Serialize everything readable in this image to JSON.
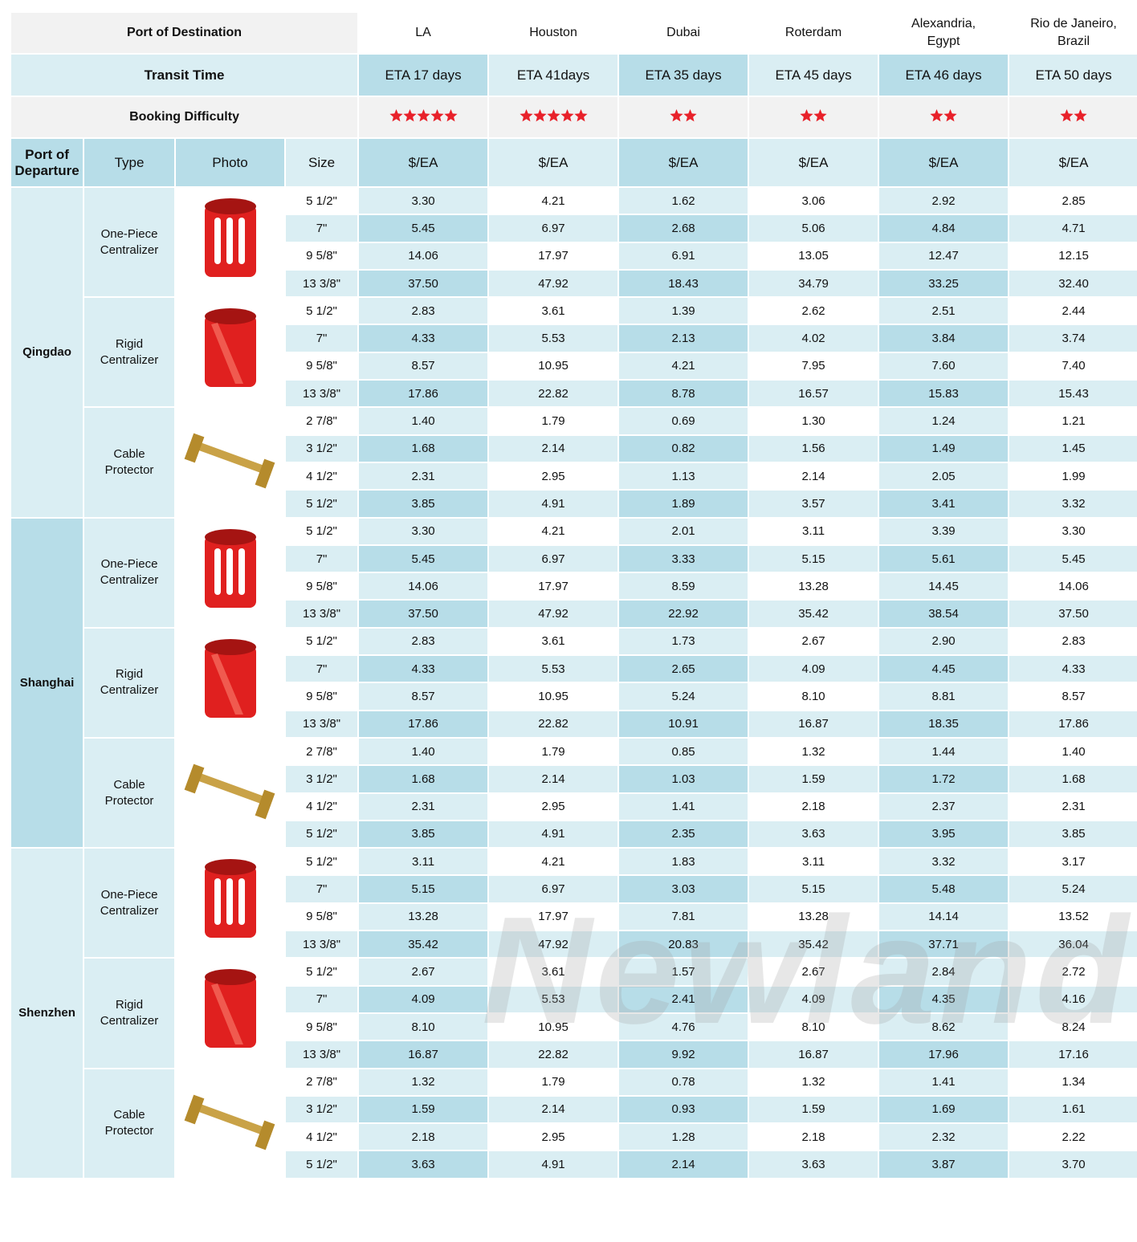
{
  "header": {
    "title_label": "Port of Destination",
    "destinations": [
      "LA",
      "Houston",
      "Dubai",
      "Roterdam",
      "Alexandria,\nEgypt",
      "Rio de Janeiro,\nBrazil"
    ],
    "transit_label": "Transit  Time",
    "etas": [
      "ETA 17 days",
      "ETA 41days",
      "ETA 35 days",
      "ETA 45 days",
      "ETA 46 days",
      "ETA 50 days"
    ],
    "booking_label": "Booking Difficulty",
    "booking_stars": [
      5,
      5,
      2,
      2,
      2,
      2
    ],
    "departure_label": "Port of\nDeparture",
    "type_label": "Type",
    "photo_label": "Photo",
    "size_label": "Size",
    "units": [
      "$/EA",
      "$/EA",
      "$/EA",
      "$/EA",
      "$/EA",
      "$/EA"
    ]
  },
  "departures": [
    {
      "port": "Qingdao",
      "products": [
        {
          "type": "One-Piece\nCentralizer",
          "rows": [
            {
              "size": "5 1/2\"",
              "prices": [
                "3.30",
                "4.21",
                "1.62",
                "3.06",
                "2.92",
                "2.85"
              ]
            },
            {
              "size": "7\"",
              "prices": [
                "5.45",
                "6.97",
                "2.68",
                "5.06",
                "4.84",
                "4.71"
              ]
            },
            {
              "size": "9 5/8\"",
              "prices": [
                "14.06",
                "17.97",
                "6.91",
                "13.05",
                "12.47",
                "12.15"
              ]
            },
            {
              "size": "13 3/8\"",
              "prices": [
                "37.50",
                "47.92",
                "18.43",
                "34.79",
                "33.25",
                "32.40"
              ]
            }
          ]
        },
        {
          "type": "Rigid\nCentralizer",
          "rows": [
            {
              "size": "5 1/2\"",
              "prices": [
                "2.83",
                "3.61",
                "1.39",
                "2.62",
                "2.51",
                "2.44"
              ]
            },
            {
              "size": "7\"",
              "prices": [
                "4.33",
                "5.53",
                "2.13",
                "4.02",
                "3.84",
                "3.74"
              ]
            },
            {
              "size": "9 5/8\"",
              "prices": [
                "8.57",
                "10.95",
                "4.21",
                "7.95",
                "7.60",
                "7.40"
              ]
            },
            {
              "size": "13 3/8\"",
              "prices": [
                "17.86",
                "22.82",
                "8.78",
                "16.57",
                "15.83",
                "15.43"
              ]
            }
          ]
        },
        {
          "type": "Cable\nProtector",
          "rows": [
            {
              "size": "2 7/8\"",
              "prices": [
                "1.40",
                "1.79",
                "0.69",
                "1.30",
                "1.24",
                "1.21"
              ]
            },
            {
              "size": "3 1/2\"",
              "prices": [
                "1.68",
                "2.14",
                "0.82",
                "1.56",
                "1.49",
                "1.45"
              ]
            },
            {
              "size": "4 1/2\"",
              "prices": [
                "2.31",
                "2.95",
                "1.13",
                "2.14",
                "2.05",
                "1.99"
              ]
            },
            {
              "size": "5 1/2\"",
              "prices": [
                "3.85",
                "4.91",
                "1.89",
                "3.57",
                "3.41",
                "3.32"
              ]
            }
          ]
        }
      ]
    },
    {
      "port": "Shanghai",
      "products": [
        {
          "type": "One-Piece\nCentralizer",
          "rows": [
            {
              "size": "5 1/2\"",
              "prices": [
                "3.30",
                "4.21",
                "2.01",
                "3.11",
                "3.39",
                "3.30"
              ]
            },
            {
              "size": "7\"",
              "prices": [
                "5.45",
                "6.97",
                "3.33",
                "5.15",
                "5.61",
                "5.45"
              ]
            },
            {
              "size": "9 5/8\"",
              "prices": [
                "14.06",
                "17.97",
                "8.59",
                "13.28",
                "14.45",
                "14.06"
              ]
            },
            {
              "size": "13 3/8\"",
              "prices": [
                "37.50",
                "47.92",
                "22.92",
                "35.42",
                "38.54",
                "37.50"
              ]
            }
          ]
        },
        {
          "type": "Rigid\nCentralizer",
          "rows": [
            {
              "size": "5 1/2\"",
              "prices": [
                "2.83",
                "3.61",
                "1.73",
                "2.67",
                "2.90",
                "2.83"
              ]
            },
            {
              "size": "7\"",
              "prices": [
                "4.33",
                "5.53",
                "2.65",
                "4.09",
                "4.45",
                "4.33"
              ]
            },
            {
              "size": "9 5/8\"",
              "prices": [
                "8.57",
                "10.95",
                "5.24",
                "8.10",
                "8.81",
                "8.57"
              ]
            },
            {
              "size": "13 3/8\"",
              "prices": [
                "17.86",
                "22.82",
                "10.91",
                "16.87",
                "18.35",
                "17.86"
              ]
            }
          ]
        },
        {
          "type": "Cable\nProtector",
          "rows": [
            {
              "size": "2 7/8\"",
              "prices": [
                "1.40",
                "1.79",
                "0.85",
                "1.32",
                "1.44",
                "1.40"
              ]
            },
            {
              "size": "3 1/2\"",
              "prices": [
                "1.68",
                "2.14",
                "1.03",
                "1.59",
                "1.72",
                "1.68"
              ]
            },
            {
              "size": "4 1/2\"",
              "prices": [
                "2.31",
                "2.95",
                "1.41",
                "2.18",
                "2.37",
                "2.31"
              ]
            },
            {
              "size": "5 1/2\"",
              "prices": [
                "3.85",
                "4.91",
                "2.35",
                "3.63",
                "3.95",
                "3.85"
              ]
            }
          ]
        }
      ]
    },
    {
      "port": "Shenzhen",
      "products": [
        {
          "type": "One-Piece\nCentralizer",
          "rows": [
            {
              "size": "5 1/2\"",
              "prices": [
                "3.11",
                "4.21",
                "1.83",
                "3.11",
                "3.32",
                "3.17"
              ]
            },
            {
              "size": "7\"",
              "prices": [
                "5.15",
                "6.97",
                "3.03",
                "5.15",
                "5.48",
                "5.24"
              ]
            },
            {
              "size": "9 5/8\"",
              "prices": [
                "13.28",
                "17.97",
                "7.81",
                "13.28",
                "14.14",
                "13.52"
              ]
            },
            {
              "size": "13 3/8\"",
              "prices": [
                "35.42",
                "47.92",
                "20.83",
                "35.42",
                "37.71",
                "36.04"
              ]
            }
          ]
        },
        {
          "type": "Rigid\nCentralizer",
          "rows": [
            {
              "size": "5 1/2\"",
              "prices": [
                "2.67",
                "3.61",
                "1.57",
                "2.67",
                "2.84",
                "2.72"
              ]
            },
            {
              "size": "7\"",
              "prices": [
                "4.09",
                "5.53",
                "2.41",
                "4.09",
                "4.35",
                "4.16"
              ]
            },
            {
              "size": "9 5/8\"",
              "prices": [
                "8.10",
                "10.95",
                "4.76",
                "8.10",
                "8.62",
                "8.24"
              ]
            },
            {
              "size": "13 3/8\"",
              "prices": [
                "16.87",
                "22.82",
                "9.92",
                "16.87",
                "17.96",
                "17.16"
              ]
            }
          ]
        },
        {
          "type": "Cable\nProtector",
          "rows": [
            {
              "size": "2 7/8\"",
              "prices": [
                "1.32",
                "1.79",
                "0.78",
                "1.32",
                "1.41",
                "1.34"
              ]
            },
            {
              "size": "3 1/2\"",
              "prices": [
                "1.59",
                "2.14",
                "0.93",
                "1.59",
                "1.69",
                "1.61"
              ]
            },
            {
              "size": "4 1/2\"",
              "prices": [
                "2.18",
                "2.95",
                "1.28",
                "2.18",
                "2.32",
                "2.22"
              ]
            },
            {
              "size": "5 1/2\"",
              "prices": [
                "3.63",
                "4.91",
                "2.14",
                "3.63",
                "3.87",
                "3.70"
              ]
            }
          ]
        }
      ]
    }
  ],
  "watermark": "Newland"
}
